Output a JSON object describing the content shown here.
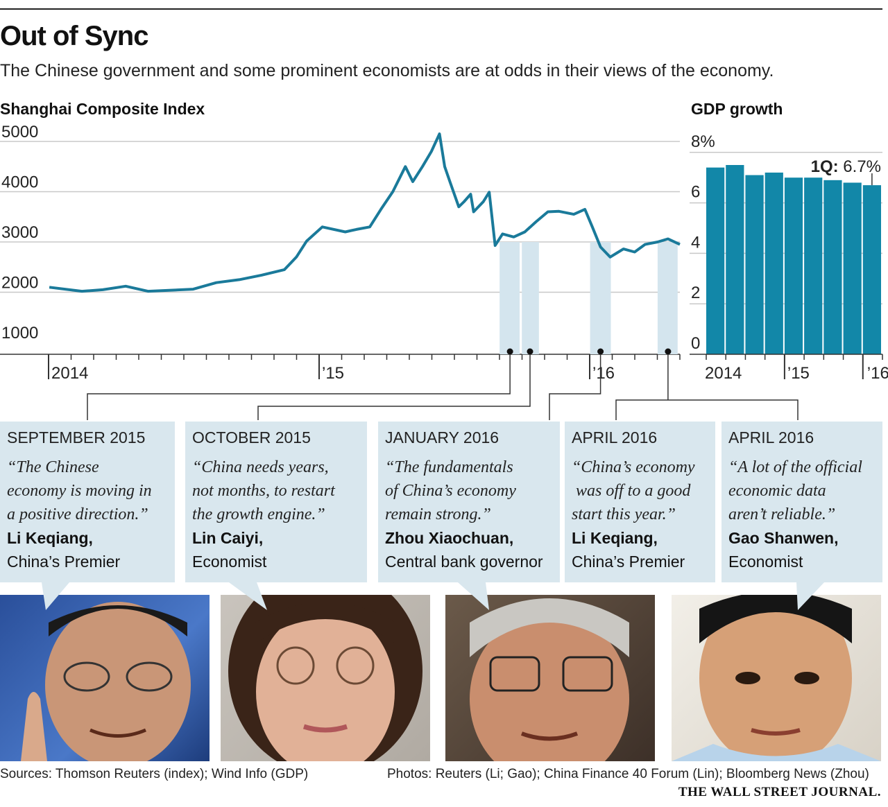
{
  "header": {
    "title": "Out of Sync",
    "subtitle": "The Chinese government and some prominent economists are at odds in their views of the economy."
  },
  "colors": {
    "line": "#1a7a9a",
    "bar": "#1287a8",
    "shade": "#d4e5ee",
    "box": "#d9e7ee"
  },
  "chart_data": [
    {
      "type": "line",
      "title": "Shanghai Composite Index",
      "ylim": [
        1000,
        5000
      ],
      "yticks": [
        "5000",
        "4000",
        "3000",
        "2000",
        "1000"
      ],
      "xticks": [
        "2014",
        "’15",
        "’16"
      ],
      "grid": true,
      "series": [
        {
          "x": [
            "2014-01-02",
            "2014-02-15",
            "2014-03-15",
            "2014-04-15",
            "2014-05-15",
            "2014-06-15",
            "2014-07-15",
            "2014-08-15",
            "2014-09-15",
            "2014-10-15",
            "2014-11-15",
            "2014-12-01",
            "2014-12-15",
            "2015-01-05",
            "2015-02-05",
            "2015-02-20",
            "2015-03-10",
            "2015-03-25",
            "2015-04-10",
            "2015-04-27",
            "2015-05-07",
            "2015-05-20",
            "2015-06-01",
            "2015-06-12",
            "2015-06-19",
            "2015-06-26",
            "2015-07-08",
            "2015-07-15",
            "2015-07-24",
            "2015-07-28",
            "2015-08-10",
            "2015-08-18",
            "2015-08-26",
            "2015-09-05",
            "2015-09-20",
            "2015-10-05",
            "2015-10-20",
            "2015-11-05",
            "2015-11-20",
            "2015-12-10",
            "2015-12-25",
            "2016-01-04",
            "2016-01-15",
            "2016-01-28",
            "2016-02-15",
            "2016-03-01",
            "2016-03-15",
            "2016-04-01",
            "2016-04-15",
            "2016-05-01"
          ],
          "y": [
            2100,
            2020,
            2050,
            2120,
            2020,
            2040,
            2060,
            2190,
            2250,
            2340,
            2450,
            2700,
            3020,
            3300,
            3200,
            3250,
            3300,
            3650,
            4000,
            4500,
            4200,
            4500,
            4800,
            5150,
            4500,
            4200,
            3700,
            3800,
            3950,
            3600,
            3800,
            3990,
            2930,
            3160,
            3100,
            3200,
            3400,
            3600,
            3610,
            3550,
            3650,
            3300,
            2900,
            2700,
            2860,
            2800,
            2950,
            3000,
            3060,
            2950
          ]
        }
      ],
      "shaded_periods": [
        [
          "2015-09-01",
          "2015-09-28"
        ],
        [
          "2015-10-01",
          "2015-10-24"
        ],
        [
          "2016-01-01",
          "2016-01-29"
        ],
        [
          "2016-04-01",
          "2016-04-28"
        ]
      ]
    },
    {
      "type": "bar",
      "title": "GDP growth",
      "ylim": [
        0,
        8
      ],
      "yticks": [
        "8%",
        "6",
        "4",
        "2",
        "0"
      ],
      "xticks": [
        "2014",
        "’15",
        "’16"
      ],
      "categories": [
        "1Q14",
        "2Q14",
        "3Q14",
        "4Q14",
        "1Q15",
        "2Q15",
        "3Q15",
        "4Q15",
        "1Q16"
      ],
      "values": [
        7.4,
        7.5,
        7.1,
        7.2,
        7.0,
        7.0,
        6.9,
        6.8,
        6.7
      ],
      "annotation": {
        "label": "1Q:",
        "value": "6.7%"
      }
    }
  ],
  "quotes": [
    {
      "date": "SEPTEMBER 2015",
      "lines": [
        "“The Chinese",
        "economy is moving in",
        "a positive direction.”"
      ],
      "name": "Li Keqiang,",
      "role": "China’s Premier"
    },
    {
      "date": "OCTOBER 2015",
      "lines": [
        "“China needs years,",
        "not months, to restart",
        "the growth engine.”"
      ],
      "name": "Lin Caiyi,",
      "role": "Economist"
    },
    {
      "date": "JANUARY 2016",
      "lines": [
        "“The fundamentals",
        "of China’s economy",
        "remain strong.”"
      ],
      "name": "Zhou Xiaochuan,",
      "role": "Central bank governor"
    },
    {
      "date": "APRIL 2016",
      "lines": [
        "“China’s economy",
        " was off to a good",
        "start this year.”"
      ],
      "name": "Li Keqiang,",
      "role": "China’s Premier"
    },
    {
      "date": "APRIL 2016",
      "lines": [
        "“A lot of the official",
        "economic data",
        "aren’t reliable.”"
      ],
      "name": "Gao Shanwen,",
      "role": "Economist"
    }
  ],
  "photos": [
    "li-keqiang-photo",
    "lin-caiyi-photo",
    "zhou-xiaochuan-photo",
    "gao-shanwen-photo"
  ],
  "footer": {
    "sources": "Sources: Thomson Reuters (index); Wind Info (GDP)",
    "photos": "Photos: Reuters (Li; Gao); China Finance 40 Forum (Lin); Bloomberg News (Zhou)",
    "brand": "THE WALL STREET JOURNAL."
  }
}
